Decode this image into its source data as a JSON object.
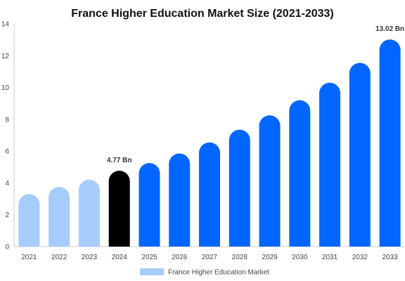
{
  "chart_data": {
    "type": "bar",
    "title": "France Higher Education Market Size (2021-2033)",
    "xlabel": "",
    "ylabel": "",
    "categories": [
      "2021",
      "2022",
      "2023",
      "2024",
      "2025",
      "2026",
      "2027",
      "2028",
      "2029",
      "2030",
      "2031",
      "2032",
      "2033"
    ],
    "values": [
      3.3,
      3.75,
      4.2,
      4.77,
      5.25,
      5.85,
      6.55,
      7.35,
      8.25,
      9.2,
      10.3,
      11.55,
      13.02
    ],
    "ylim": [
      0,
      14
    ],
    "yticks": [
      0,
      2,
      4,
      6,
      8,
      10,
      12,
      14
    ],
    "data_labels": [
      {
        "category": "2024",
        "text": "4.77 Bn"
      },
      {
        "category": "2033",
        "text": "13.02 Bn"
      }
    ],
    "legend": [
      {
        "label": "France Higher Education Market",
        "color": "#a6ccfb"
      }
    ],
    "legend_position": "bottom",
    "grid": false,
    "colors": {
      "history": "#a6ccfb",
      "base_year": "#000000",
      "forecast": "#0066ff"
    },
    "color_key": [
      "history",
      "history",
      "history",
      "base_year",
      "forecast",
      "forecast",
      "forecast",
      "forecast",
      "forecast",
      "forecast",
      "forecast",
      "forecast",
      "forecast"
    ]
  }
}
